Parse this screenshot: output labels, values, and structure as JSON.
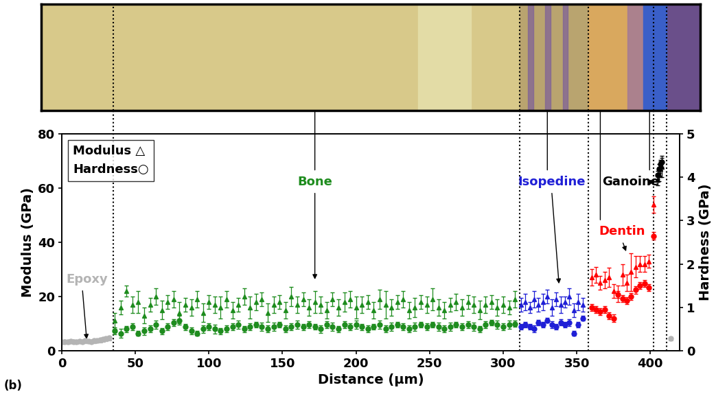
{
  "chart_data": {
    "type": "scatter",
    "x_label": "Distance (µm)",
    "y_label": "Modulus (GPa)",
    "y2_label": "Hardness (GPa)",
    "panel_label": "(b)",
    "xlim": [
      0,
      420
    ],
    "xticks": [
      0,
      50,
      100,
      150,
      200,
      250,
      300,
      350,
      400
    ],
    "ylim": [
      0,
      80
    ],
    "yticks": [
      0,
      20,
      40,
      60,
      80
    ],
    "y2lim": [
      0,
      5
    ],
    "y2ticks": [
      0,
      1,
      2,
      3,
      4,
      5
    ],
    "grid": false,
    "legend": "upper left",
    "legend_entries": [
      "Modulus △",
      "Hardness○"
    ],
    "boundaries": [
      35,
      311,
      358,
      402,
      411
    ],
    "series": [
      {
        "name": "Epoxy",
        "color": "#b4b4b4",
        "marker": "triangle",
        "axis": "y",
        "x": [
          0,
          2,
          4,
          6,
          8,
          10,
          12,
          14,
          16,
          18,
          20,
          22,
          24,
          26,
          28,
          30,
          32,
          414
        ],
        "values": [
          3.2,
          3.4,
          3.3,
          3.5,
          3.4,
          3.3,
          3.5,
          3.4,
          3.6,
          3.5,
          3.4,
          3.6,
          3.7,
          3.8,
          4.0,
          4.3,
          4.6,
          4.5
        ],
        "errors": [
          0.6,
          0.6,
          0.6,
          0.6,
          0.6,
          0.6,
          0.6,
          0.6,
          0.6,
          0.6,
          0.6,
          0.6,
          0.6,
          0.6,
          0.6,
          0.6,
          0.6,
          0.6
        ]
      },
      {
        "name": "Epoxy",
        "color": "#b4b4b4",
        "marker": "circle",
        "axis": "y2",
        "x": [
          0,
          2,
          4,
          6,
          8,
          10,
          12,
          14,
          16,
          18,
          20,
          22,
          24,
          26,
          28,
          30,
          32,
          414
        ],
        "values": [
          0.2,
          0.21,
          0.2,
          0.22,
          0.21,
          0.2,
          0.22,
          0.21,
          0.23,
          0.22,
          0.21,
          0.23,
          0.24,
          0.25,
          0.26,
          0.28,
          0.3,
          0.28
        ],
        "errors": [
          0.03,
          0.03,
          0.03,
          0.03,
          0.03,
          0.03,
          0.03,
          0.03,
          0.03,
          0.03,
          0.03,
          0.03,
          0.03,
          0.03,
          0.03,
          0.03,
          0.03,
          0.03
        ]
      },
      {
        "name": "Bone",
        "color": "#1e8c1e",
        "marker": "triangle",
        "axis": "y",
        "x": [
          36,
          40,
          44,
          48,
          52,
          56,
          60,
          64,
          68,
          72,
          76,
          80,
          84,
          88,
          92,
          96,
          100,
          104,
          108,
          112,
          116,
          120,
          124,
          128,
          132,
          136,
          140,
          144,
          148,
          152,
          156,
          160,
          164,
          168,
          172,
          176,
          180,
          184,
          188,
          192,
          196,
          200,
          204,
          208,
          212,
          216,
          220,
          224,
          228,
          232,
          236,
          240,
          244,
          248,
          252,
          256,
          260,
          264,
          268,
          272,
          276,
          280,
          284,
          288,
          292,
          296,
          300,
          304,
          308
        ],
        "values": [
          11,
          16,
          22,
          17,
          18,
          13,
          17,
          20,
          15,
          18,
          19,
          14,
          17,
          16,
          19,
          14,
          18,
          17,
          16,
          19,
          15,
          17,
          20,
          16,
          18,
          19,
          14,
          17,
          18,
          15,
          20,
          17,
          19,
          16,
          18,
          17,
          15,
          19,
          16,
          18,
          19,
          16,
          17,
          18,
          15,
          19,
          17,
          16,
          18,
          19,
          15,
          16,
          18,
          17,
          19,
          16,
          15,
          17,
          18,
          16,
          18,
          17,
          15,
          17,
          18,
          16,
          17,
          16,
          19
        ],
        "errors": [
          3,
          2.5,
          2,
          3,
          4,
          3,
          2.5,
          3,
          3.5,
          2.5,
          3,
          4,
          2.5,
          3,
          3,
          3.5,
          2.5,
          3,
          4,
          3,
          3,
          2.5,
          3,
          4,
          3,
          2.5,
          3.5,
          3,
          2.5,
          3,
          3.5,
          3,
          2.5,
          3,
          4,
          3,
          3,
          2.5,
          3,
          3.5,
          3,
          4,
          3,
          2.5,
          3,
          3.5,
          5,
          3,
          2.5,
          3,
          3,
          3.5,
          2.5,
          3,
          4,
          3,
          3,
          2.5,
          3,
          3,
          2.5,
          3,
          3.5,
          3,
          2.5,
          3,
          3,
          2.5,
          3
        ]
      },
      {
        "name": "Bone",
        "color": "#1e8c1e",
        "marker": "circle",
        "axis": "y2",
        "x": [
          36,
          40,
          44,
          48,
          52,
          56,
          60,
          64,
          68,
          72,
          76,
          80,
          84,
          88,
          92,
          96,
          100,
          104,
          108,
          112,
          116,
          120,
          124,
          128,
          132,
          136,
          140,
          144,
          148,
          152,
          156,
          160,
          164,
          168,
          172,
          176,
          180,
          184,
          188,
          192,
          196,
          200,
          204,
          208,
          212,
          216,
          220,
          224,
          228,
          232,
          236,
          240,
          244,
          248,
          252,
          256,
          260,
          264,
          268,
          272,
          276,
          280,
          284,
          288,
          292,
          296,
          300,
          304,
          308
        ],
        "values": [
          0.45,
          0.4,
          0.5,
          0.55,
          0.4,
          0.45,
          0.5,
          0.6,
          0.45,
          0.55,
          0.65,
          0.7,
          0.55,
          0.45,
          0.4,
          0.5,
          0.55,
          0.5,
          0.45,
          0.5,
          0.55,
          0.6,
          0.5,
          0.55,
          0.6,
          0.55,
          0.5,
          0.55,
          0.6,
          0.5,
          0.55,
          0.6,
          0.55,
          0.6,
          0.55,
          0.5,
          0.6,
          0.55,
          0.5,
          0.6,
          0.55,
          0.6,
          0.55,
          0.5,
          0.55,
          0.6,
          0.5,
          0.55,
          0.6,
          0.55,
          0.5,
          0.55,
          0.6,
          0.55,
          0.6,
          0.55,
          0.5,
          0.55,
          0.6,
          0.55,
          0.6,
          0.55,
          0.5,
          0.6,
          0.65,
          0.6,
          0.55,
          0.6,
          0.62
        ],
        "errors": [
          0.08,
          0.1,
          0.07,
          0.08,
          0.06,
          0.09,
          0.08,
          0.1,
          0.07,
          0.08,
          0.08,
          0.1,
          0.07,
          0.08,
          0.06,
          0.09,
          0.08,
          0.1,
          0.07,
          0.08,
          0.08,
          0.1,
          0.07,
          0.08,
          0.06,
          0.09,
          0.08,
          0.1,
          0.07,
          0.08,
          0.08,
          0.1,
          0.07,
          0.08,
          0.06,
          0.09,
          0.08,
          0.1,
          0.07,
          0.08,
          0.08,
          0.1,
          0.07,
          0.08,
          0.06,
          0.09,
          0.08,
          0.1,
          0.07,
          0.08,
          0.08,
          0.1,
          0.07,
          0.08,
          0.06,
          0.09,
          0.08,
          0.1,
          0.07,
          0.08,
          0.08,
          0.1,
          0.07,
          0.08,
          0.06,
          0.09,
          0.08,
          0.1,
          0.07
        ]
      },
      {
        "name": "Isopedine",
        "color": "#1f1fd6",
        "marker": "triangle",
        "axis": "y",
        "x": [
          312,
          315,
          318,
          321,
          324,
          327,
          330,
          333,
          336,
          339,
          342,
          345,
          348,
          351,
          354
        ],
        "values": [
          17,
          18,
          16,
          19,
          17,
          18,
          20,
          16,
          19,
          17,
          18,
          20,
          15,
          18,
          17
        ],
        "errors": [
          2.5,
          3,
          2,
          3,
          2.5,
          3,
          2.5,
          3,
          2.5,
          3,
          2,
          3,
          2.5,
          3,
          2.5
        ]
      },
      {
        "name": "Isopedine",
        "color": "#1f1fd6",
        "marker": "circle",
        "axis": "y2",
        "x": [
          312,
          315,
          318,
          321,
          324,
          327,
          330,
          333,
          336,
          339,
          342,
          345,
          348,
          351,
          354
        ],
        "values": [
          0.55,
          0.6,
          0.55,
          0.5,
          0.65,
          0.6,
          0.7,
          0.6,
          0.55,
          0.65,
          0.6,
          0.65,
          0.4,
          0.6,
          0.75
        ],
        "errors": [
          0.06,
          0.07,
          0.06,
          0.08,
          0.06,
          0.07,
          0.06,
          0.08,
          0.06,
          0.07,
          0.06,
          0.08,
          0.06,
          0.07,
          0.06
        ]
      },
      {
        "name": "Dentin",
        "color": "#ff0000",
        "marker": "triangle",
        "axis": "y",
        "x": [
          360,
          363,
          366,
          369,
          372,
          375,
          378,
          381,
          384,
          387,
          390,
          393,
          396,
          399,
          402
        ],
        "values": [
          27,
          28,
          25,
          26,
          27,
          22,
          21,
          28,
          25,
          29,
          31,
          32,
          32,
          33,
          54
        ],
        "errors": [
          3,
          3,
          2.5,
          3,
          3.5,
          2.5,
          3,
          4,
          3,
          7,
          4,
          3,
          3,
          2.5,
          3
        ]
      },
      {
        "name": "Dentin",
        "color": "#ff0000",
        "marker": "circle",
        "axis": "y2",
        "x": [
          360,
          363,
          366,
          369,
          372,
          375,
          378,
          381,
          384,
          387,
          390,
          393,
          396,
          399,
          402
        ],
        "values": [
          1.0,
          0.95,
          0.9,
          0.95,
          0.8,
          0.75,
          1.3,
          1.2,
          1.15,
          1.25,
          1.4,
          1.5,
          1.55,
          1.45,
          2.65
        ],
        "errors": [
          0.08,
          0.08,
          0.08,
          0.08,
          0.08,
          0.08,
          0.08,
          0.08,
          0.08,
          0.08,
          0.08,
          0.08,
          0.08,
          0.08,
          0.08
        ]
      },
      {
        "name": "Ganoine",
        "color": "#000000",
        "marker": "triangle",
        "axis": "y",
        "x": [
          405,
          406,
          407,
          408
        ],
        "values": [
          63,
          65,
          67,
          68
        ],
        "errors": [
          2,
          2.5,
          3,
          4
        ]
      },
      {
        "name": "Ganoine",
        "color": "#000000",
        "marker": "circle",
        "axis": "y2",
        "x": [
          405,
          406,
          407,
          408
        ],
        "values": [
          4.05,
          4.2,
          4.3,
          4.35
        ],
        "errors": [
          0.1,
          0.1,
          0.1,
          0.1
        ]
      }
    ]
  }
}
